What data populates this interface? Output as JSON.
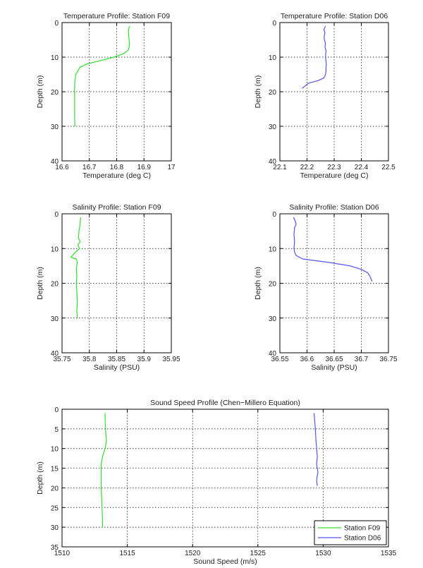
{
  "colors": {
    "F09": "#33dd33",
    "D06": "#5555ee",
    "axis": "#000000",
    "grid": "#000000"
  },
  "chart_data": [
    {
      "type": "line",
      "title": "Temperature Profile: Station F09",
      "xlabel": "Temperature (deg C)",
      "ylabel": "Depth (m)",
      "xlim": [
        16.6,
        17
      ],
      "ylim": [
        0,
        40
      ],
      "y_inverted": true,
      "grid": true,
      "xticks": [
        "16.6",
        "16.7",
        "16.8",
        "16.9",
        "17"
      ],
      "yticks": [
        "0",
        "10",
        "20",
        "30",
        "40"
      ],
      "series": [
        {
          "color_key": "F09",
          "x": [
            16.848,
            16.843,
            16.844,
            16.847,
            16.846,
            16.842,
            16.825,
            16.79,
            16.74,
            16.69,
            16.665,
            16.658,
            16.65,
            16.647,
            16.646,
            16.646,
            16.646,
            16.647
          ],
          "y": [
            1,
            2,
            4,
            6,
            7,
            8,
            9,
            10,
            11,
            12,
            13,
            14,
            15,
            17,
            19,
            23,
            27,
            30
          ]
        }
      ]
    },
    {
      "type": "line",
      "title": "Temperature Profile: Station D06",
      "xlabel": "Temperature (deg C)",
      "ylabel": "Depth (m)",
      "xlim": [
        22.1,
        22.5
      ],
      "ylim": [
        0,
        40
      ],
      "y_inverted": true,
      "grid": true,
      "xticks": [
        "22.1",
        "22.2",
        "22.3",
        "22.4",
        "22.5"
      ],
      "yticks": [
        "0",
        "10",
        "20",
        "30",
        "40"
      ],
      "series": [
        {
          "color_key": "D06",
          "x": [
            22.268,
            22.262,
            22.266,
            22.263,
            22.264,
            22.268,
            22.266,
            22.27,
            22.268,
            22.271,
            22.27,
            22.27,
            22.268,
            22.262,
            22.24,
            22.206,
            22.198,
            22.182
          ],
          "y": [
            1,
            2,
            3,
            4,
            5,
            6,
            7,
            8,
            10,
            12,
            13,
            14,
            15,
            16,
            16.8,
            17.5,
            18,
            19
          ]
        }
      ]
    },
    {
      "type": "line",
      "title": "Salinity Profile: Station F09",
      "xlabel": "Salinity (PSU)",
      "ylabel": "Depth (m)",
      "xlim": [
        35.75,
        35.95
      ],
      "ylim": [
        0,
        40
      ],
      "y_inverted": true,
      "grid": true,
      "xticks": [
        "35.75",
        "35.8",
        "35.85",
        "35.9",
        "35.95"
      ],
      "yticks": [
        "0",
        "10",
        "20",
        "30",
        "40"
      ],
      "series": [
        {
          "color_key": "F09",
          "x": [
            35.784,
            35.783,
            35.781,
            35.78,
            35.783,
            35.779,
            35.782,
            35.775,
            35.772,
            35.766,
            35.776,
            35.778,
            35.776,
            35.777,
            35.776,
            35.777,
            35.778,
            35.777,
            35.778
          ],
          "y": [
            1,
            3,
            5,
            7,
            8,
            9,
            10,
            11,
            11.5,
            12.5,
            13,
            14,
            16,
            18,
            20,
            22,
            25,
            28,
            30
          ]
        }
      ]
    },
    {
      "type": "line",
      "title": "Salinity Profile: Station D06",
      "xlabel": "Salinity (PSU)",
      "ylabel": "Depth (m)",
      "xlim": [
        36.55,
        36.75
      ],
      "ylim": [
        0,
        40
      ],
      "y_inverted": true,
      "grid": true,
      "xticks": [
        "36.55",
        "36.6",
        "36.65",
        "36.7",
        "36.75"
      ],
      "yticks": [
        "0",
        "10",
        "20",
        "30",
        "40"
      ],
      "series": [
        {
          "color_key": "D06",
          "x": [
            36.575,
            36.578,
            36.58,
            36.577,
            36.576,
            36.577,
            36.576,
            36.577,
            36.58,
            36.592,
            36.64,
            36.68,
            36.7,
            36.712,
            36.716,
            36.72
          ],
          "y": [
            1,
            2,
            3,
            4,
            6,
            8,
            10,
            11,
            12,
            13,
            14,
            15,
            16,
            17,
            18,
            19.5
          ]
        }
      ]
    },
    {
      "type": "line",
      "title": "Sound Speed Profile (Chen−Millero Equation)",
      "xlabel": "Sound Speed (m/s)",
      "ylabel": "Depth (m)",
      "xlim": [
        1510,
        1535
      ],
      "ylim": [
        0,
        35
      ],
      "y_inverted": true,
      "grid": true,
      "legend": "bottom-right",
      "xticks": [
        "1510",
        "1515",
        "1520",
        "1525",
        "1530",
        "1535"
      ],
      "yticks": [
        "0",
        "5",
        "10",
        "15",
        "20",
        "25",
        "30",
        "35"
      ],
      "series": [
        {
          "name": "Station F09",
          "color_key": "F09",
          "x": [
            1513.3,
            1513.3,
            1513.35,
            1513.4,
            1513.3,
            1513.1,
            1513.0,
            1513.0,
            1513.0,
            1513.05,
            1513.1,
            1513.1
          ],
          "y": [
            1,
            3,
            6,
            8,
            10,
            12,
            14,
            17,
            20,
            24,
            28,
            30
          ]
        },
        {
          "name": "Station D06",
          "color_key": "D06",
          "x": [
            1529.3,
            1529.35,
            1529.4,
            1529.45,
            1529.5,
            1529.55,
            1529.5,
            1529.6,
            1529.5,
            1529.55
          ],
          "y": [
            1,
            3,
            5,
            8,
            10,
            12,
            14,
            16,
            18,
            19.5
          ]
        }
      ]
    }
  ]
}
